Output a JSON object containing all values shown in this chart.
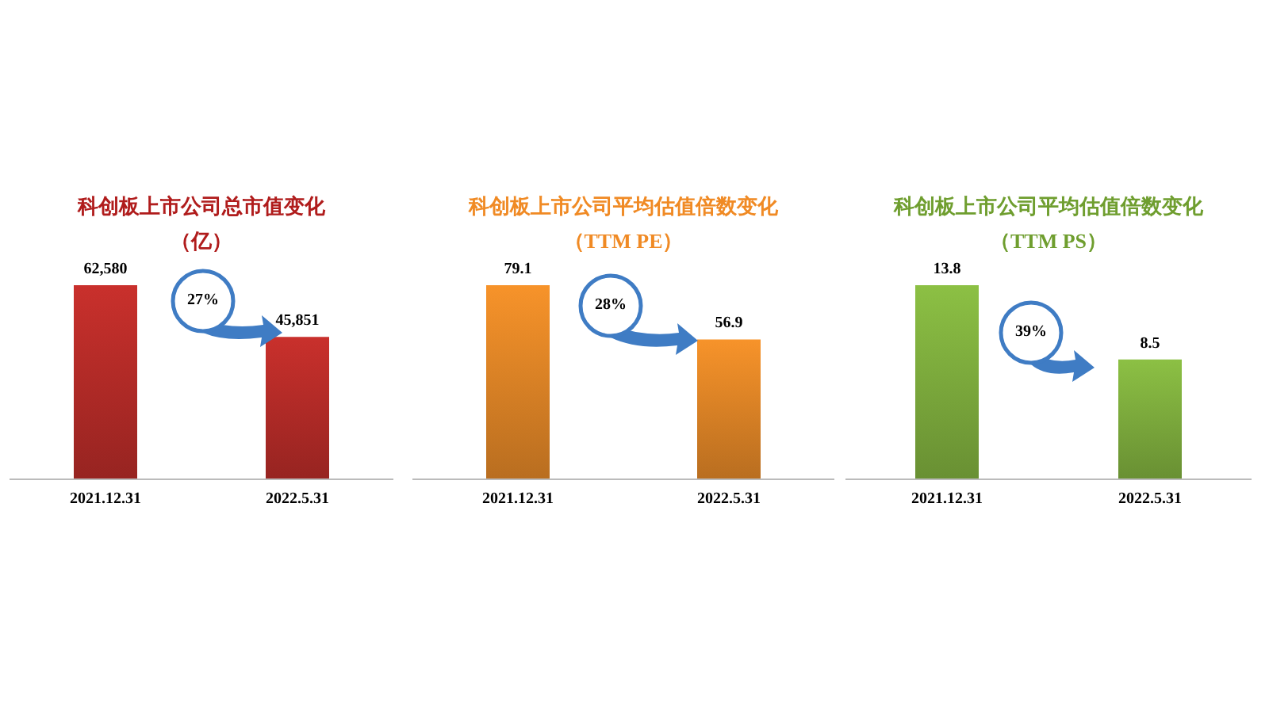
{
  "chart_data": [
    {
      "type": "bar",
      "title": "科创板上市公司总市值变化",
      "subtitle": "（亿）",
      "categories": [
        "2021.12.31",
        "2022.5.31"
      ],
      "values": [
        62580,
        45851
      ],
      "value_labels": [
        "62,580",
        "45,851"
      ],
      "color": "#c9302c",
      "annotations": [
        "27%"
      ]
    },
    {
      "type": "bar",
      "title": "科创板上市公司平均估值倍数变化",
      "subtitle": "（TTM PE）",
      "categories": [
        "2021.12.31",
        "2022.5.31"
      ],
      "values": [
        79.1,
        56.9
      ],
      "data_labels": true,
      "color": "#f7932a",
      "annotations": [
        "28%"
      ]
    },
    {
      "type": "bar",
      "title": "科创板上市公司平均估值倍数变化",
      "subtitle": "（TTM PS）",
      "categories": [
        "2021.12.31",
        "2022.5.31"
      ],
      "values": [
        13.8,
        8.5
      ],
      "data_labels": true,
      "color": "#8cc044",
      "annotations": [
        "39%"
      ]
    }
  ]
}
